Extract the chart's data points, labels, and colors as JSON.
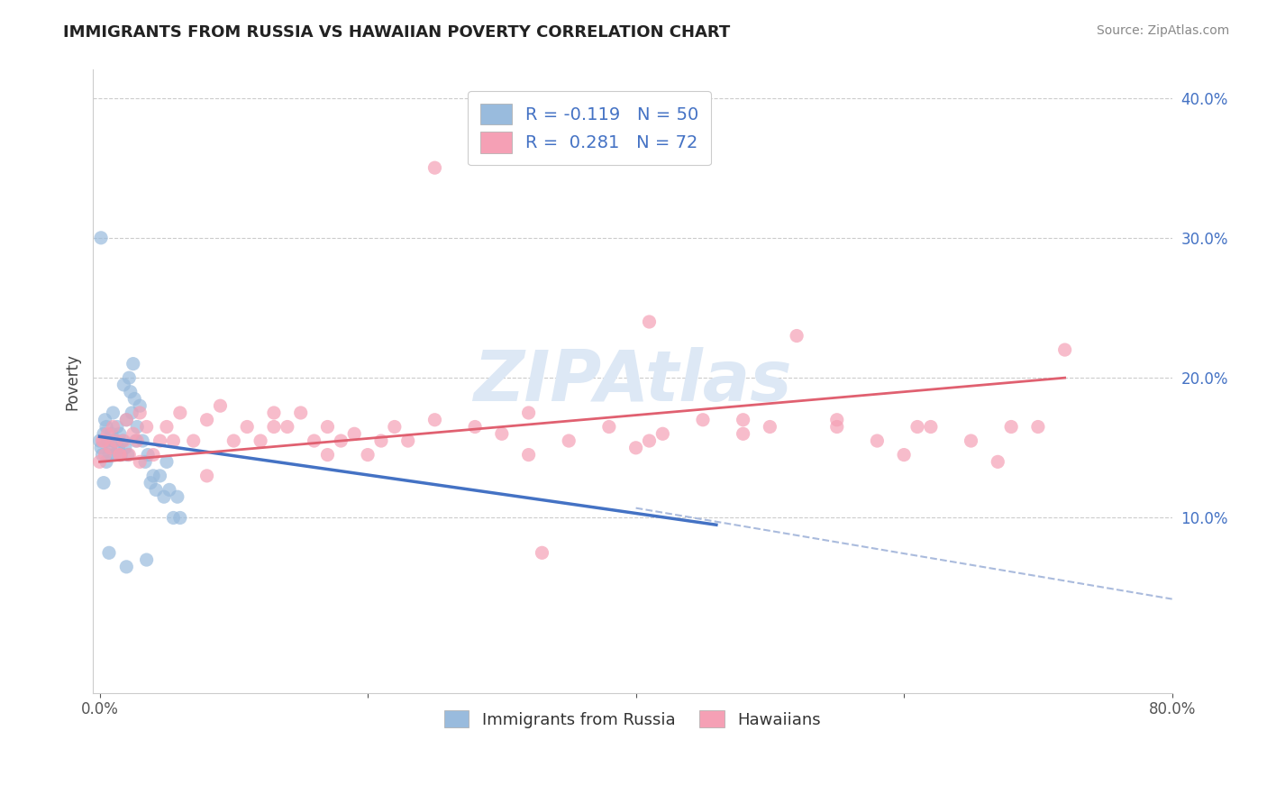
{
  "title": "IMMIGRANTS FROM RUSSIA VS HAWAIIAN POVERTY CORRELATION CHART",
  "source": "Source: ZipAtlas.com",
  "ylabel": "Poverty",
  "xlim": [
    -0.005,
    0.8
  ],
  "ylim": [
    -0.025,
    0.42
  ],
  "x_ticks": [
    0.0,
    0.2,
    0.4,
    0.6,
    0.8
  ],
  "x_tick_labels": [
    "0.0%",
    "",
    "",
    "",
    "80.0%"
  ],
  "y_ticks": [
    0.1,
    0.2,
    0.3,
    0.4
  ],
  "y_tick_labels": [
    "10.0%",
    "20.0%",
    "30.0%",
    "40.0%"
  ],
  "grid_color": "#cccccc",
  "background_color": "#ffffff",
  "blue_scatter_color": "#99bbdd",
  "pink_scatter_color": "#f5a0b5",
  "blue_line_color": "#4472c4",
  "pink_line_color": "#e06070",
  "dashed_line_color": "#aabbdd",
  "legend_text_color": "#4472c4",
  "ytick_color": "#4472c4",
  "watermark": "ZIPAtlas",
  "watermark_color": "#dde8f5",
  "legend_R1": "-0.119",
  "legend_N1": "50",
  "legend_R2": "0.281",
  "legend_N2": "72",
  "blue_scatter_x": [
    0.0,
    0.001,
    0.002,
    0.003,
    0.004,
    0.005,
    0.005,
    0.006,
    0.007,
    0.008,
    0.009,
    0.01,
    0.01,
    0.011,
    0.012,
    0.013,
    0.014,
    0.015,
    0.016,
    0.017,
    0.018,
    0.019,
    0.02,
    0.021,
    0.022,
    0.023,
    0.024,
    0.025,
    0.026,
    0.027,
    0.028,
    0.03,
    0.032,
    0.034,
    0.036,
    0.038,
    0.04,
    0.042,
    0.045,
    0.048,
    0.05,
    0.052,
    0.055,
    0.058,
    0.06,
    0.001,
    0.003,
    0.007,
    0.02,
    0.035
  ],
  "blue_scatter_y": [
    0.155,
    0.15,
    0.145,
    0.16,
    0.17,
    0.14,
    0.165,
    0.155,
    0.145,
    0.15,
    0.16,
    0.155,
    0.175,
    0.145,
    0.155,
    0.165,
    0.15,
    0.16,
    0.145,
    0.155,
    0.195,
    0.15,
    0.17,
    0.145,
    0.2,
    0.19,
    0.175,
    0.21,
    0.185,
    0.155,
    0.165,
    0.18,
    0.155,
    0.14,
    0.145,
    0.125,
    0.13,
    0.12,
    0.13,
    0.115,
    0.14,
    0.12,
    0.1,
    0.115,
    0.1,
    0.3,
    0.125,
    0.075,
    0.065,
    0.07
  ],
  "pink_scatter_x": [
    0.0,
    0.002,
    0.004,
    0.006,
    0.008,
    0.01,
    0.012,
    0.015,
    0.018,
    0.02,
    0.022,
    0.025,
    0.028,
    0.03,
    0.035,
    0.04,
    0.045,
    0.05,
    0.06,
    0.07,
    0.08,
    0.09,
    0.1,
    0.11,
    0.12,
    0.13,
    0.14,
    0.15,
    0.16,
    0.17,
    0.18,
    0.19,
    0.2,
    0.21,
    0.22,
    0.23,
    0.25,
    0.28,
    0.3,
    0.32,
    0.35,
    0.38,
    0.4,
    0.42,
    0.45,
    0.48,
    0.5,
    0.52,
    0.55,
    0.58,
    0.6,
    0.62,
    0.65,
    0.68,
    0.7,
    0.72,
    0.003,
    0.015,
    0.03,
    0.055,
    0.08,
    0.13,
    0.17,
    0.25,
    0.32,
    0.41,
    0.48,
    0.55,
    0.61,
    0.67,
    0.33,
    0.41
  ],
  "pink_scatter_y": [
    0.14,
    0.155,
    0.145,
    0.16,
    0.15,
    0.165,
    0.155,
    0.145,
    0.155,
    0.17,
    0.145,
    0.16,
    0.155,
    0.175,
    0.165,
    0.145,
    0.155,
    0.165,
    0.175,
    0.155,
    0.17,
    0.18,
    0.155,
    0.165,
    0.155,
    0.175,
    0.165,
    0.175,
    0.155,
    0.165,
    0.155,
    0.16,
    0.145,
    0.155,
    0.165,
    0.155,
    0.35,
    0.165,
    0.16,
    0.145,
    0.155,
    0.165,
    0.15,
    0.16,
    0.17,
    0.16,
    0.165,
    0.23,
    0.165,
    0.155,
    0.145,
    0.165,
    0.155,
    0.165,
    0.165,
    0.22,
    0.155,
    0.145,
    0.14,
    0.155,
    0.13,
    0.165,
    0.145,
    0.17,
    0.175,
    0.155,
    0.17,
    0.17,
    0.165,
    0.14,
    0.075,
    0.24
  ],
  "blue_line_x": [
    0.0,
    0.46
  ],
  "blue_line_y": [
    0.158,
    0.095
  ],
  "pink_line_x": [
    0.0,
    0.72
  ],
  "pink_line_y": [
    0.14,
    0.2
  ],
  "dashed_line_x": [
    0.4,
    0.8
  ],
  "dashed_line_y": [
    0.107,
    0.042
  ]
}
